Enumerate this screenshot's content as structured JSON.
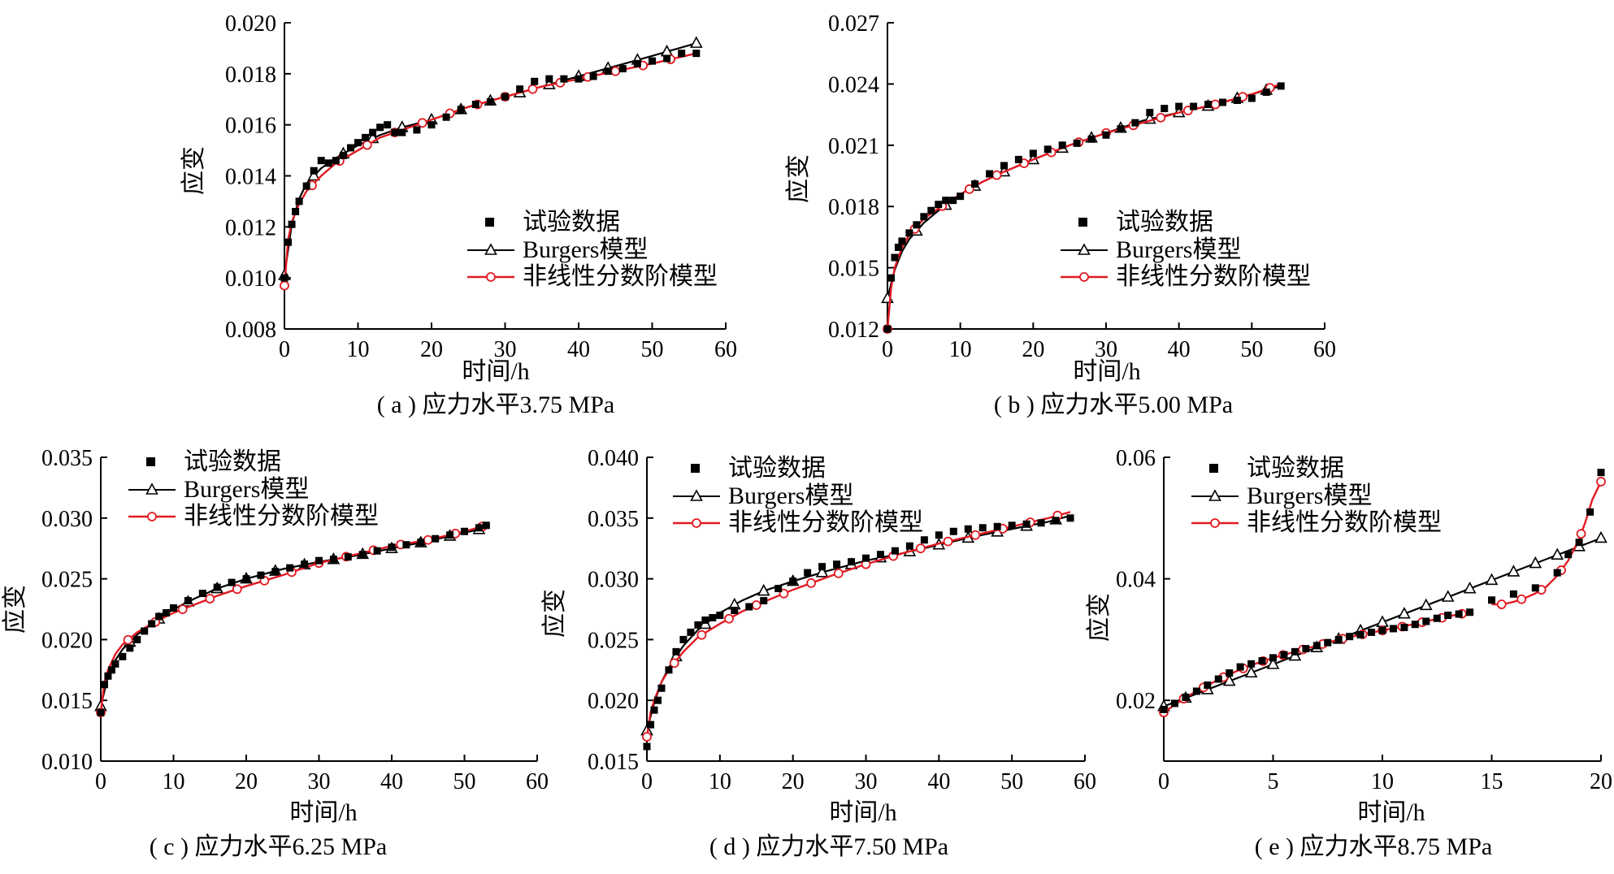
{
  "colors": {
    "experiment": "#000000",
    "burgers": "#000000",
    "fractional": "#e21a22",
    "axis": "#000000"
  },
  "legend": {
    "experiment": "试验数据",
    "burgers": "Burgers模型",
    "fractional": "非线性分数阶模型"
  },
  "chart_data": [
    {
      "type": "scatter",
      "caption": "( a ) 应力水平3.75 MPa",
      "xlabel": "时间/h",
      "ylabel": "应变",
      "xlim": [
        0,
        60
      ],
      "ylim": [
        0.008,
        0.02
      ],
      "xticks": [
        "0",
        "10",
        "20",
        "30",
        "40",
        "50",
        "60"
      ],
      "yticks": [
        "0.008",
        "0.010",
        "0.012",
        "0.014",
        "0.016",
        "0.018",
        "0.020"
      ],
      "series": [
        {
          "name": "试验数据",
          "x": [
            0,
            0.5,
            1,
            1.5,
            2,
            3,
            4,
            5,
            6,
            7,
            8,
            9,
            10,
            11,
            12,
            13,
            14,
            15,
            16,
            18,
            20,
            22,
            24,
            26,
            28,
            30,
            32,
            34,
            36,
            38,
            40,
            42,
            44,
            46,
            48,
            50,
            52,
            54,
            56
          ],
          "y": [
            0.01,
            0.0114,
            0.0121,
            0.0126,
            0.013,
            0.0136,
            0.0142,
            0.0146,
            0.0145,
            0.0146,
            0.0148,
            0.0151,
            0.0153,
            0.0155,
            0.0157,
            0.0159,
            0.016,
            0.0157,
            0.0157,
            0.0158,
            0.016,
            0.0163,
            0.0166,
            0.0168,
            0.0169,
            0.0171,
            0.0174,
            0.0177,
            0.0178,
            0.0178,
            0.0178,
            0.0179,
            0.0181,
            0.0182,
            0.0184,
            0.0185,
            0.0186,
            0.0188,
            0.0188
          ]
        },
        {
          "name": "Burgers模型",
          "x": [
            0,
            1,
            2,
            3,
            5,
            7,
            10,
            13,
            16,
            20,
            25,
            30,
            35,
            40,
            45,
            50,
            56
          ],
          "y": [
            0.0101,
            0.0121,
            0.0131,
            0.0137,
            0.0143,
            0.0147,
            0.0152,
            0.0156,
            0.0159,
            0.0162,
            0.0167,
            0.0171,
            0.0175,
            0.0179,
            0.0183,
            0.0187,
            0.0192
          ]
        },
        {
          "name": "非线性分数阶模型",
          "x": [
            0,
            0.5,
            1,
            2,
            3,
            5,
            7,
            10,
            13,
            16,
            20,
            25,
            30,
            35,
            40,
            45,
            50,
            56
          ],
          "y": [
            0.0097,
            0.0115,
            0.0122,
            0.0129,
            0.0134,
            0.014,
            0.0145,
            0.015,
            0.0155,
            0.0158,
            0.0162,
            0.0167,
            0.0171,
            0.0175,
            0.0178,
            0.0181,
            0.0184,
            0.0188
          ]
        }
      ]
    },
    {
      "type": "scatter",
      "caption": "( b ) 应力水平5.00 MPa",
      "xlabel": "时间/h",
      "ylabel": "应变",
      "xlim": [
        0,
        60
      ],
      "ylim": [
        0.012,
        0.027
      ],
      "xticks": [
        "0",
        "10",
        "20",
        "30",
        "40",
        "50",
        "60"
      ],
      "yticks": [
        "0.012",
        "0.015",
        "0.018",
        "0.021",
        "0.024",
        "0.027"
      ],
      "series": [
        {
          "name": "试验数据",
          "x": [
            0,
            0.5,
            1,
            1.5,
            2,
            3,
            4,
            5,
            6,
            7,
            8,
            9,
            10,
            12,
            14,
            16,
            18,
            20,
            22,
            24,
            26,
            28,
            30,
            32,
            34,
            36,
            38,
            40,
            42,
            44,
            46,
            48,
            50,
            52,
            54
          ],
          "y": [
            0.012,
            0.0145,
            0.0155,
            0.016,
            0.0163,
            0.0167,
            0.0171,
            0.0175,
            0.0178,
            0.0181,
            0.0183,
            0.0183,
            0.0185,
            0.0191,
            0.0196,
            0.02,
            0.0203,
            0.0206,
            0.0208,
            0.021,
            0.0211,
            0.0213,
            0.0215,
            0.0218,
            0.0221,
            0.0226,
            0.0228,
            0.0229,
            0.0229,
            0.023,
            0.0231,
            0.0232,
            0.0233,
            0.0236,
            0.0239
          ]
        },
        {
          "name": "Burgers模型",
          "x": [
            0,
            1,
            2,
            3,
            5,
            7,
            10,
            13,
            16,
            20,
            25,
            30,
            35,
            40,
            45,
            50,
            54
          ],
          "y": [
            0.0135,
            0.0149,
            0.0158,
            0.0164,
            0.0172,
            0.0178,
            0.0186,
            0.0192,
            0.0197,
            0.0203,
            0.021,
            0.0216,
            0.0222,
            0.0226,
            0.023,
            0.0235,
            0.0239
          ]
        },
        {
          "name": "非线性分数阶模型",
          "x": [
            0,
            0.5,
            1,
            2,
            3,
            5,
            7,
            10,
            13,
            16,
            20,
            25,
            30,
            35,
            40,
            45,
            50,
            54
          ],
          "y": [
            0.012,
            0.014,
            0.015,
            0.016,
            0.0166,
            0.0174,
            0.0179,
            0.0186,
            0.0192,
            0.0197,
            0.0203,
            0.021,
            0.0216,
            0.0221,
            0.0226,
            0.023,
            0.0235,
            0.024
          ]
        }
      ]
    },
    {
      "type": "scatter",
      "caption": "( c ) 应力水平6.25 MPa",
      "xlabel": "时间/h",
      "ylabel": "应变",
      "xlim": [
        0,
        60
      ],
      "ylim": [
        0.01,
        0.035
      ],
      "xticks": [
        "0",
        "10",
        "20",
        "30",
        "40",
        "50",
        "60"
      ],
      "yticks": [
        "0.010",
        "0.015",
        "0.020",
        "0.025",
        "0.030",
        "0.035"
      ],
      "series": [
        {
          "name": "试验数据",
          "x": [
            0,
            0.5,
            1,
            1.5,
            2,
            3,
            4,
            5,
            6,
            7,
            8,
            9,
            10,
            12,
            14,
            16,
            18,
            20,
            22,
            24,
            26,
            28,
            30,
            32,
            34,
            36,
            38,
            40,
            42,
            44,
            46,
            48,
            50,
            52,
            53
          ],
          "y": [
            0.014,
            0.0163,
            0.017,
            0.0175,
            0.018,
            0.0186,
            0.0193,
            0.02,
            0.0207,
            0.0213,
            0.0219,
            0.0222,
            0.0226,
            0.0232,
            0.0238,
            0.0243,
            0.0247,
            0.025,
            0.0253,
            0.0256,
            0.0259,
            0.0262,
            0.0265,
            0.0266,
            0.0268,
            0.027,
            0.0273,
            0.0276,
            0.0278,
            0.028,
            0.0283,
            0.0286,
            0.0289,
            0.0292,
            0.0294
          ]
        },
        {
          "name": "Burgers模型",
          "x": [
            0,
            1,
            2,
            3,
            5,
            7,
            10,
            13,
            16,
            20,
            25,
            30,
            35,
            40,
            45,
            50,
            53
          ],
          "y": [
            0.0145,
            0.017,
            0.0183,
            0.0192,
            0.0204,
            0.0213,
            0.0225,
            0.0234,
            0.0242,
            0.025,
            0.0258,
            0.0264,
            0.0269,
            0.0275,
            0.0281,
            0.0288,
            0.0292
          ]
        },
        {
          "name": "非线性分数阶模型",
          "x": [
            0,
            0.5,
            1,
            2,
            3,
            5,
            7,
            10,
            13,
            16,
            20,
            25,
            30,
            35,
            40,
            45,
            50,
            53
          ],
          "y": [
            0.014,
            0.0165,
            0.0175,
            0.0188,
            0.0196,
            0.0206,
            0.0213,
            0.0222,
            0.0229,
            0.0236,
            0.0244,
            0.0253,
            0.0263,
            0.027,
            0.0277,
            0.0282,
            0.0289,
            0.0294
          ]
        }
      ]
    },
    {
      "type": "scatter",
      "caption": "( d ) 应力水平7.50 MPa",
      "xlabel": "时间/h",
      "ylabel": "应变",
      "xlim": [
        0,
        60
      ],
      "ylim": [
        0.015,
        0.04
      ],
      "xticks": [
        "0",
        "10",
        "20",
        "30",
        "40",
        "50",
        "60"
      ],
      "yticks": [
        "0.015",
        "0.020",
        "0.025",
        "0.030",
        "0.035",
        "0.040"
      ],
      "series": [
        {
          "name": "试验数据",
          "x": [
            0,
            0.5,
            1,
            1.5,
            2,
            3,
            4,
            5,
            6,
            7,
            8,
            9,
            10,
            12,
            14,
            16,
            18,
            20,
            22,
            24,
            26,
            28,
            30,
            32,
            34,
            36,
            38,
            40,
            42,
            44,
            46,
            48,
            50,
            52,
            54,
            56,
            58
          ],
          "y": [
            0.0162,
            0.018,
            0.0192,
            0.02,
            0.021,
            0.0225,
            0.024,
            0.025,
            0.0256,
            0.0262,
            0.0266,
            0.0268,
            0.027,
            0.0274,
            0.0277,
            0.0282,
            0.0292,
            0.0298,
            0.0305,
            0.031,
            0.0312,
            0.0314,
            0.0317,
            0.032,
            0.0323,
            0.0327,
            0.0332,
            0.0336,
            0.0339,
            0.0341,
            0.0342,
            0.0343,
            0.0344,
            0.0345,
            0.0346,
            0.0348,
            0.035
          ]
        },
        {
          "name": "Burgers模型",
          "x": [
            0,
            1,
            2,
            3,
            5,
            7,
            10,
            13,
            16,
            20,
            25,
            30,
            35,
            40,
            45,
            50,
            55,
            58
          ],
          "y": [
            0.0175,
            0.0198,
            0.0215,
            0.0227,
            0.0245,
            0.0258,
            0.0272,
            0.0282,
            0.029,
            0.0298,
            0.0307,
            0.0315,
            0.0321,
            0.0328,
            0.0335,
            0.0341,
            0.0347,
            0.0352
          ]
        },
        {
          "name": "非线性分数阶模型",
          "x": [
            0,
            0.5,
            1,
            2,
            3,
            5,
            7,
            10,
            13,
            16,
            20,
            25,
            30,
            35,
            40,
            45,
            50,
            55,
            58
          ],
          "y": [
            0.017,
            0.019,
            0.02,
            0.0215,
            0.0225,
            0.024,
            0.0252,
            0.0263,
            0.0273,
            0.0281,
            0.0291,
            0.0302,
            0.0312,
            0.0321,
            0.0329,
            0.0336,
            0.0343,
            0.035,
            0.0355
          ]
        }
      ]
    },
    {
      "type": "scatter",
      "caption": "( e ) 应力水平8.75 MPa",
      "xlabel": "时间/h",
      "ylabel": "应变",
      "xlim": [
        0,
        20
      ],
      "ylim": [
        0.01,
        0.06
      ],
      "xticks": [
        "0",
        "5",
        "10",
        "15",
        "20"
      ],
      "yticks": [
        "0.02",
        "0.04",
        "0.06"
      ],
      "series": [
        {
          "name": "试验数据",
          "x": [
            0,
            0.5,
            1,
            1.5,
            2,
            2.5,
            3,
            3.5,
            4,
            4.5,
            5,
            5.5,
            6,
            6.5,
            7,
            7.5,
            8,
            8.5,
            9,
            9.5,
            10,
            10.5,
            11,
            11.5,
            12,
            12.5,
            13,
            13.5,
            14,
            15,
            16,
            17,
            18,
            18.5,
            19,
            19.5,
            20
          ],
          "y": [
            0.0185,
            0.0195,
            0.0205,
            0.0215,
            0.0225,
            0.0235,
            0.0245,
            0.0255,
            0.026,
            0.0265,
            0.027,
            0.0275,
            0.028,
            0.0285,
            0.029,
            0.0295,
            0.03,
            0.0305,
            0.0308,
            0.0312,
            0.0315,
            0.0318,
            0.032,
            0.0325,
            0.033,
            0.0335,
            0.034,
            0.0342,
            0.0345,
            0.0365,
            0.0375,
            0.0385,
            0.041,
            0.044,
            0.046,
            0.051,
            0.0575
          ]
        },
        {
          "name": "Burgers模型",
          "x": [
            0,
            20
          ],
          "y": [
            0.019,
            0.0467
          ]
        },
        {
          "name": "非线性分数阶模型",
          "x": [
            0,
            1,
            2,
            3,
            4,
            5,
            6,
            7,
            8,
            9,
            10,
            11,
            12,
            13,
            14,
            15,
            15.5,
            16,
            16.5,
            17,
            17.5,
            18,
            18.5,
            19,
            19.3,
            19.6,
            20
          ],
          "y": [
            0.018,
            0.0205,
            0.0225,
            0.0243,
            0.0258,
            0.027,
            0.028,
            0.029,
            0.03,
            0.0308,
            0.0315,
            0.0322,
            0.033,
            0.0338,
            0.0345,
            0.0358,
            0.0358,
            0.0362,
            0.0368,
            0.0376,
            0.0387,
            0.0405,
            0.043,
            0.0465,
            0.0495,
            0.053,
            0.056
          ]
        }
      ]
    }
  ]
}
